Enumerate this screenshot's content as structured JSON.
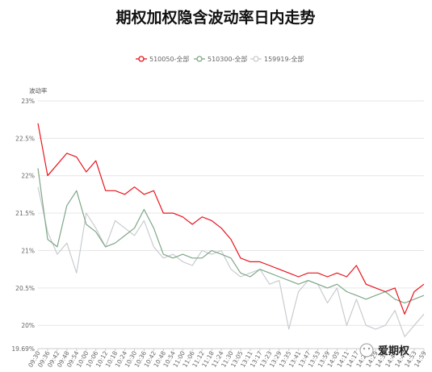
{
  "chart_data": {
    "type": "line",
    "title": "期权加权隐含波动率日内走势",
    "ylabel": "波动率",
    "ylim": [
      19.69,
      23
    ],
    "y_ticks": [
      "23%",
      "22.5%",
      "22%",
      "21.5%",
      "21%",
      "20.5%",
      "20%"
    ],
    "y_min_label": "19.69%",
    "grid": true,
    "legend_position": "top-center",
    "categories": [
      "09:30",
      "09:36",
      "09:42",
      "09:48",
      "09:54",
      "10:00",
      "10:06",
      "10:12",
      "10:18",
      "10:24",
      "10:30",
      "10:36",
      "10:42",
      "10:48",
      "10:54",
      "11:00",
      "11:06",
      "11:12",
      "11:18",
      "11:24",
      "11:30",
      "13:05",
      "13:11",
      "13:17",
      "13:23",
      "13:29",
      "13:35",
      "13:41",
      "13:47",
      "13:53",
      "13:59",
      "14:05",
      "14:11",
      "14:17",
      "14:23",
      "14:29",
      "14:35",
      "14:41",
      "14:47",
      "14:53",
      "14:59"
    ],
    "series": [
      {
        "name": "510050-全部",
        "color": "#e8141c",
        "values": [
          22.7,
          22.0,
          22.15,
          22.3,
          22.25,
          22.05,
          22.2,
          21.8,
          21.8,
          21.75,
          21.85,
          21.75,
          21.8,
          21.5,
          21.5,
          21.45,
          21.35,
          21.45,
          21.4,
          21.3,
          21.15,
          20.9,
          20.85,
          20.85,
          20.8,
          20.75,
          20.7,
          20.65,
          20.7,
          20.7,
          20.65,
          20.7,
          20.65,
          20.8,
          20.55,
          20.5,
          20.45,
          20.5,
          20.15,
          20.45,
          20.55
        ]
      },
      {
        "name": "510300-全部",
        "color": "#7fa788",
        "values": [
          22.1,
          21.15,
          21.05,
          21.6,
          21.8,
          21.35,
          21.25,
          21.05,
          21.1,
          21.2,
          21.3,
          21.55,
          21.3,
          20.95,
          20.9,
          20.95,
          20.9,
          20.9,
          21.0,
          20.95,
          20.9,
          20.7,
          20.65,
          20.75,
          20.7,
          20.65,
          20.6,
          20.55,
          20.6,
          20.55,
          20.5,
          20.55,
          20.45,
          20.4,
          20.35,
          20.4,
          20.45,
          20.35,
          20.3,
          20.35,
          20.4
        ]
      },
      {
        "name": "159919-全部",
        "color": "#c8ccd0",
        "values": [
          21.85,
          21.25,
          20.95,
          21.1,
          20.7,
          21.5,
          21.3,
          21.05,
          21.4,
          21.3,
          21.2,
          21.4,
          21.05,
          20.9,
          20.95,
          20.85,
          20.8,
          21.0,
          20.95,
          21.0,
          20.75,
          20.65,
          20.7,
          20.75,
          20.55,
          20.6,
          19.95,
          20.45,
          20.6,
          20.55,
          20.3,
          20.5,
          20.0,
          20.35,
          20.0,
          19.95,
          20.0,
          20.2,
          19.85,
          20.0,
          20.15
        ]
      }
    ]
  },
  "watermark": {
    "text": "爱期权"
  },
  "icons": {
    "watermark": "wechat-icon"
  }
}
